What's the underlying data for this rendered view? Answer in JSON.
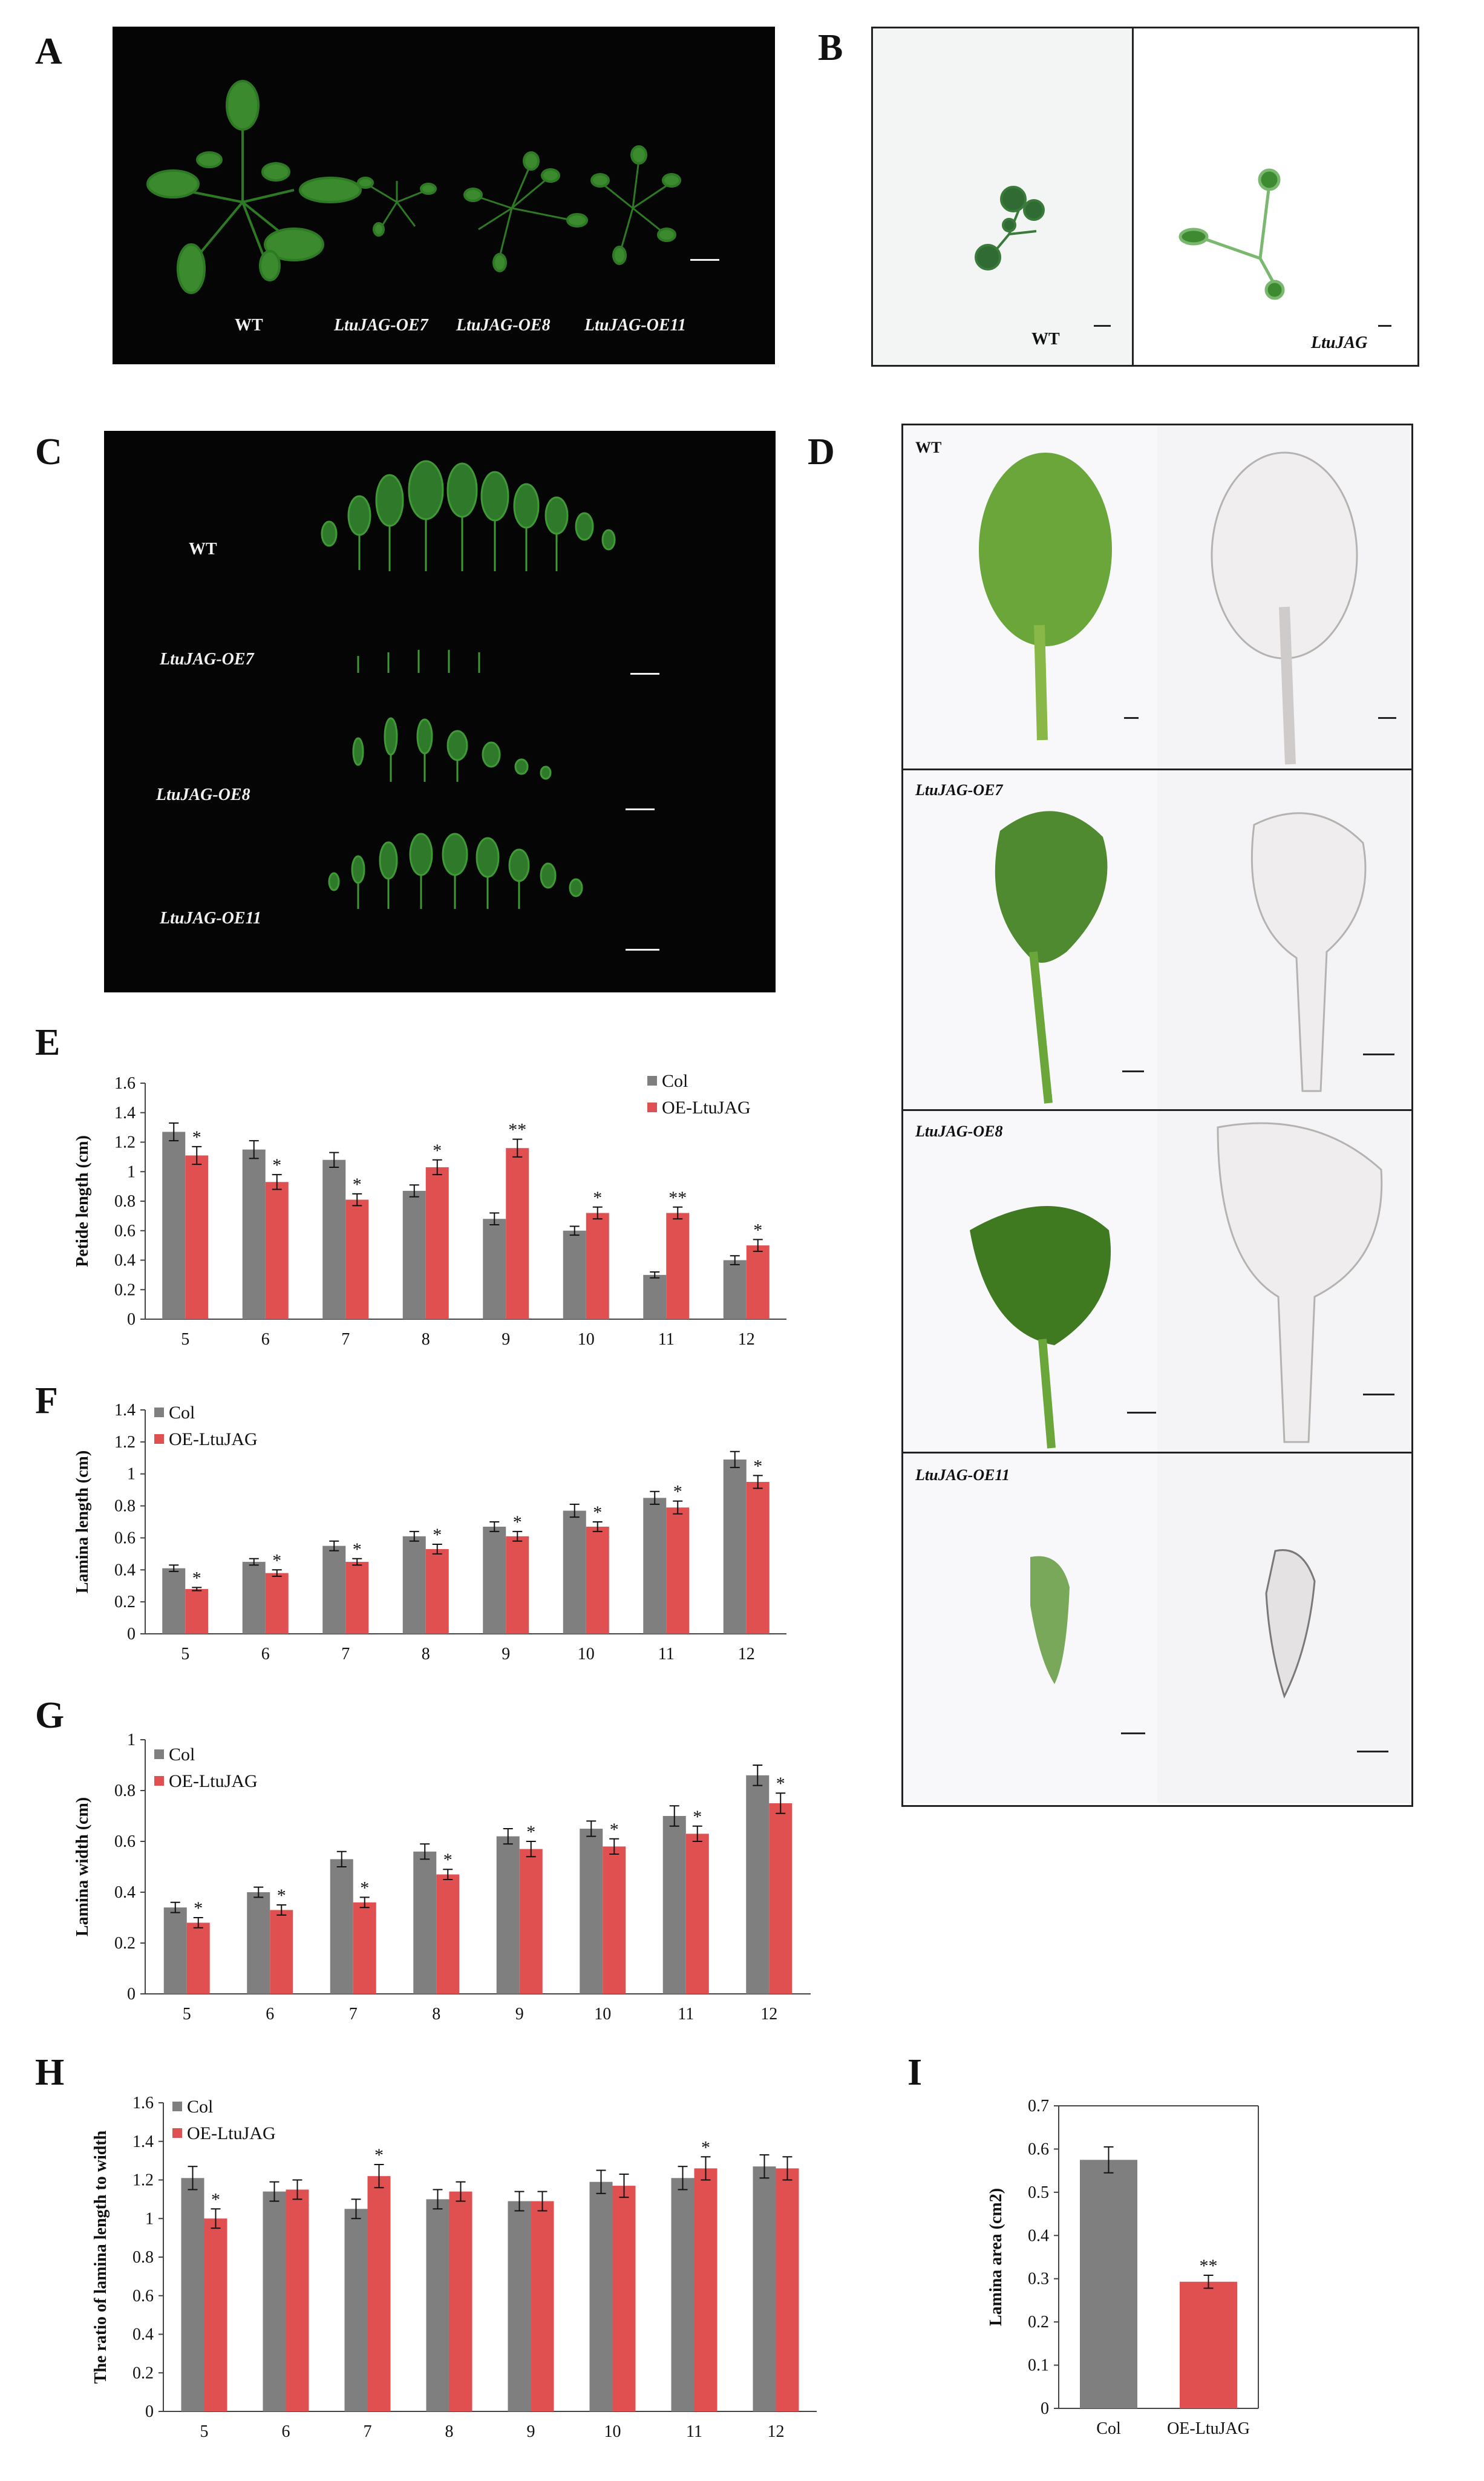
{
  "figure": {
    "panels": {
      "A": {
        "letter": "A",
        "labels": [
          "WT",
          "LtuJAG-OE7",
          "LtuJAG-OE8",
          "LtuJAG-OE11"
        ]
      },
      "B": {
        "letter": "B",
        "labels": [
          "WT",
          "LtuJAG"
        ]
      },
      "C": {
        "letter": "C",
        "labels": [
          "WT",
          "LtuJAG-OE7",
          "LtuJAG-OE8",
          "LtuJAG-OE11"
        ]
      },
      "D": {
        "letter": "D",
        "labels": [
          "WT",
          "LtuJAG-OE7",
          "LtuJAG-OE8",
          "LtuJAG-OE11"
        ]
      },
      "E": {
        "letter": "E"
      },
      "F": {
        "letter": "F"
      },
      "G": {
        "letter": "G"
      },
      "H": {
        "letter": "H"
      },
      "I": {
        "letter": "I"
      }
    },
    "colors": {
      "col": "#7f7f7f",
      "oe": "#e05050"
    }
  },
  "chart_data": [
    {
      "id": "E",
      "type": "bar",
      "categories": [
        "5",
        "6",
        "7",
        "8",
        "9",
        "10",
        "11",
        "12"
      ],
      "ylabel": "Petide length (cm)",
      "ylim": [
        0,
        1.6
      ],
      "yticks": [
        "0",
        "0.2",
        "0.4",
        "0.6",
        "0.8",
        "1",
        "1.2",
        "1.4",
        "1.6"
      ],
      "legend_position": "top-right",
      "series": [
        {
          "name": "Col",
          "values": [
            1.27,
            1.15,
            1.08,
            0.87,
            0.68,
            0.6,
            0.3,
            0.4
          ],
          "errors": [
            0.06,
            0.06,
            0.05,
            0.04,
            0.04,
            0.03,
            0.02,
            0.03
          ]
        },
        {
          "name": "OE-LtuJAG",
          "values": [
            1.11,
            0.93,
            0.81,
            1.03,
            1.16,
            0.72,
            0.72,
            0.5
          ],
          "errors": [
            0.06,
            0.05,
            0.04,
            0.05,
            0.06,
            0.04,
            0.04,
            0.04
          ]
        }
      ],
      "annotations": [
        "*",
        "*",
        "*",
        "*",
        "**",
        "*",
        "**",
        "*"
      ]
    },
    {
      "id": "F",
      "type": "bar",
      "categories": [
        "5",
        "6",
        "7",
        "8",
        "9",
        "10",
        "11",
        "12"
      ],
      "ylabel": "Lamina length (cm)",
      "ylim": [
        0,
        1.4
      ],
      "yticks": [
        "0",
        "0.2",
        "0.4",
        "0.6",
        "0.8",
        "1",
        "1.2",
        "1.4"
      ],
      "legend_position": "top-left",
      "series": [
        {
          "name": "Col",
          "values": [
            0.41,
            0.45,
            0.55,
            0.61,
            0.67,
            0.77,
            0.85,
            1.09
          ],
          "errors": [
            0.02,
            0.02,
            0.03,
            0.03,
            0.03,
            0.04,
            0.04,
            0.05
          ]
        },
        {
          "name": "OE-LtuJAG",
          "values": [
            0.28,
            0.38,
            0.45,
            0.53,
            0.61,
            0.67,
            0.79,
            0.95
          ],
          "errors": [
            0.01,
            0.02,
            0.02,
            0.03,
            0.03,
            0.03,
            0.04,
            0.04
          ]
        }
      ],
      "annotations": [
        "*",
        "*",
        "*",
        "*",
        "*",
        "*",
        "*",
        "*"
      ]
    },
    {
      "id": "G",
      "type": "bar",
      "categories": [
        "5",
        "6",
        "7",
        "8",
        "9",
        "10",
        "11",
        "12"
      ],
      "ylabel": "Lamina width (cm)",
      "ylim": [
        0,
        1
      ],
      "yticks": [
        "0",
        "0.2",
        "0.4",
        "0.6",
        "0.8",
        "1"
      ],
      "legend_position": "top-left",
      "series": [
        {
          "name": "Col",
          "values": [
            0.34,
            0.4,
            0.53,
            0.56,
            0.62,
            0.65,
            0.7,
            0.86
          ],
          "errors": [
            0.02,
            0.02,
            0.03,
            0.03,
            0.03,
            0.03,
            0.04,
            0.04
          ]
        },
        {
          "name": "OE-LtuJAG",
          "values": [
            0.28,
            0.33,
            0.36,
            0.47,
            0.57,
            0.58,
            0.63,
            0.75
          ],
          "errors": [
            0.02,
            0.02,
            0.02,
            0.02,
            0.03,
            0.03,
            0.03,
            0.04
          ]
        }
      ],
      "annotations": [
        "*",
        "*",
        "*",
        "*",
        "*",
        "*",
        "*",
        "*"
      ]
    },
    {
      "id": "H",
      "type": "bar",
      "categories": [
        "5",
        "6",
        "7",
        "8",
        "9",
        "10",
        "11",
        "12"
      ],
      "ylabel": "The ratio of lamina length to width",
      "ylim": [
        0,
        1.6
      ],
      "yticks": [
        "0",
        "0.2",
        "0.4",
        "0.6",
        "0.8",
        "1",
        "1.2",
        "1.4",
        "1.6"
      ],
      "legend_position": "top-left",
      "series": [
        {
          "name": "Col",
          "values": [
            1.21,
            1.14,
            1.05,
            1.1,
            1.09,
            1.19,
            1.21,
            1.27
          ],
          "errors": [
            0.06,
            0.05,
            0.05,
            0.05,
            0.05,
            0.06,
            0.06,
            0.06
          ]
        },
        {
          "name": "OE-LtuJAG",
          "values": [
            1.0,
            1.15,
            1.22,
            1.14,
            1.09,
            1.17,
            1.26,
            1.26
          ],
          "errors": [
            0.05,
            0.05,
            0.06,
            0.05,
            0.05,
            0.06,
            0.06,
            0.06
          ]
        }
      ],
      "annotations": [
        "*",
        "",
        "*",
        "",
        "",
        "",
        "*",
        ""
      ]
    },
    {
      "id": "I",
      "type": "bar",
      "categories": [
        "Col",
        "OE-LtuJAG"
      ],
      "ylabel": "Lamina area (cm2)",
      "ylim": [
        0,
        0.7
      ],
      "yticks": [
        "0",
        "0.1",
        "0.2",
        "0.3",
        "0.4",
        "0.5",
        "0.6",
        "0.7"
      ],
      "values": [
        0.575,
        0.293
      ],
      "errors": [
        0.03,
        0.015
      ],
      "annotations": [
        "",
        "**"
      ]
    }
  ]
}
